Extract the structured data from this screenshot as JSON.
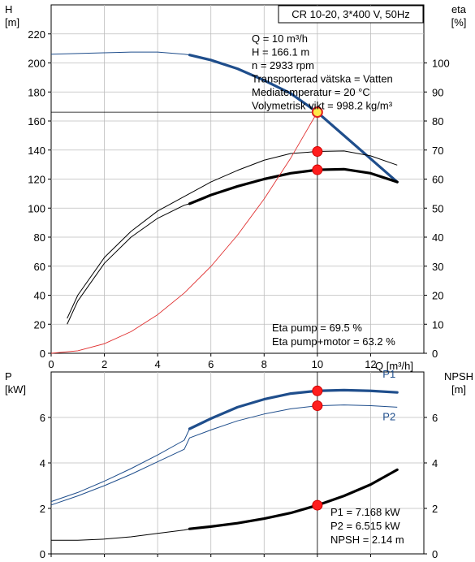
{
  "chart_data": [
    {
      "type": "line",
      "title": "CR 10-20, 3*400 V, 50Hz",
      "xlabel": "Q [m³/h]",
      "ylabel_left": [
        "H",
        "[m]"
      ],
      "ylabel_right": [
        "eta",
        "[%]"
      ],
      "xlim": [
        0,
        14
      ],
      "ylim_left": [
        0,
        240
      ],
      "ylim_right": [
        0,
        120
      ],
      "x_ticks": [
        0,
        2,
        4,
        6,
        8,
        10,
        12
      ],
      "y_ticks_left": [
        0,
        20,
        40,
        60,
        80,
        100,
        120,
        140,
        160,
        180,
        200,
        220
      ],
      "y_ticks_right": [
        0,
        10,
        20,
        30,
        40,
        50,
        60,
        70,
        80,
        90,
        100
      ],
      "grid": true,
      "series": [
        {
          "key": "H",
          "axis": "left",
          "color": "#1f4e8c",
          "x": [
            0,
            1,
            2,
            3,
            4,
            5,
            5.2,
            6,
            7,
            8,
            9,
            10,
            11,
            12,
            13
          ],
          "y": [
            206,
            206.5,
            207,
            207.5,
            207.5,
            206,
            205.5,
            202,
            196,
            188,
            179,
            166,
            150,
            134,
            118
          ],
          "bold_from": 5.2
        },
        {
          "key": "eta_pump",
          "axis": "right",
          "color": "#000000",
          "x": [
            0.6,
            1,
            2,
            3,
            4,
            5,
            6,
            7,
            8,
            9,
            10,
            11,
            12,
            13
          ],
          "y": [
            12,
            20,
            33,
            42,
            49,
            54,
            59,
            63,
            66.5,
            68.8,
            69.5,
            69.7,
            68,
            64.8
          ]
        },
        {
          "key": "eta_pump_motor",
          "axis": "right",
          "color": "#000000",
          "x": [
            0.6,
            1,
            2,
            3,
            4,
            5,
            5.2,
            6,
            7,
            8,
            9,
            10,
            11,
            12,
            13
          ],
          "y": [
            10,
            18,
            31,
            40,
            46.5,
            51,
            51.5,
            54.5,
            57.5,
            60,
            62,
            63.2,
            63.4,
            62,
            59
          ],
          "bold_from": 5.2
        },
        {
          "key": "system",
          "axis": "left",
          "color": "#e03030",
          "x": [
            0,
            1,
            2,
            3,
            4,
            5,
            6,
            7,
            8,
            9,
            10
          ],
          "y": [
            0,
            1.7,
            6.6,
            14.9,
            26.6,
            41.5,
            59.8,
            81.4,
            106.3,
            134.5,
            166.1
          ]
        }
      ],
      "points": [
        {
          "x": 10,
          "y": 166.1,
          "axis": "left",
          "style": "yellow"
        },
        {
          "x": 10,
          "y": 69.5,
          "axis": "right",
          "style": "red"
        },
        {
          "x": 10,
          "y": 63.2,
          "axis": "right",
          "style": "red"
        }
      ],
      "info_lines": [
        "Q = 10 m³/h",
        "H = 166.1 m",
        "n = 2933 rpm",
        "Transporterad vätska = Vatten",
        "Mediatemperatur = 20 °C",
        "Volymetrisk vikt = 998.2 kg/m³"
      ],
      "eta_lines": [
        "Eta pump = 69.5 %",
        "Eta pump+motor = 63.2 %"
      ]
    },
    {
      "type": "line",
      "ylabel_left": [
        "P",
        "[kW]"
      ],
      "ylabel_right": [
        "NPSH",
        "[m]"
      ],
      "xlim": [
        0,
        14
      ],
      "ylim_left": [
        0,
        8
      ],
      "ylim_right": [
        0,
        8
      ],
      "y_ticks_left": [
        0,
        2,
        4,
        6
      ],
      "y_ticks_right": [
        0,
        2,
        4,
        6
      ],
      "grid": true,
      "series": [
        {
          "key": "P1",
          "name": "P1",
          "axis": "left",
          "color": "#1f4e8c",
          "x": [
            0,
            1,
            2,
            3,
            4,
            5,
            5.2,
            6,
            7,
            8,
            9,
            10,
            11,
            12,
            13
          ],
          "y": [
            2.3,
            2.7,
            3.2,
            3.75,
            4.35,
            5.0,
            5.5,
            5.95,
            6.45,
            6.8,
            7.05,
            7.17,
            7.2,
            7.17,
            7.1
          ],
          "bold_from": 5.2
        },
        {
          "key": "P2",
          "name": "P2",
          "axis": "left",
          "color": "#1f4e8c",
          "x": [
            0,
            1,
            2,
            3,
            4,
            5,
            5.2,
            6,
            7,
            8,
            9,
            10,
            11,
            12,
            13
          ],
          "y": [
            2.15,
            2.55,
            3.0,
            3.5,
            4.05,
            4.6,
            5.1,
            5.45,
            5.85,
            6.15,
            6.38,
            6.515,
            6.55,
            6.52,
            6.45
          ]
        },
        {
          "key": "NPSH",
          "axis": "right",
          "color": "#000000",
          "x": [
            0,
            1,
            2,
            3,
            4,
            5,
            5.2,
            6,
            7,
            8,
            9,
            10,
            11,
            12,
            13
          ],
          "y": [
            0.6,
            0.6,
            0.65,
            0.75,
            0.9,
            1.05,
            1.1,
            1.2,
            1.35,
            1.55,
            1.8,
            2.14,
            2.55,
            3.05,
            3.7
          ],
          "bold_from": 5.2
        }
      ],
      "points": [
        {
          "x": 10,
          "y": 7.168,
          "axis": "left",
          "style": "red"
        },
        {
          "x": 10,
          "y": 6.515,
          "axis": "left",
          "style": "red"
        },
        {
          "x": 10,
          "y": 2.14,
          "axis": "right",
          "style": "red"
        }
      ],
      "info_lines": [
        "P1 = 7.168 kW",
        "P2 = 6.515 kW",
        "NPSH = 2.14 m"
      ]
    }
  ]
}
